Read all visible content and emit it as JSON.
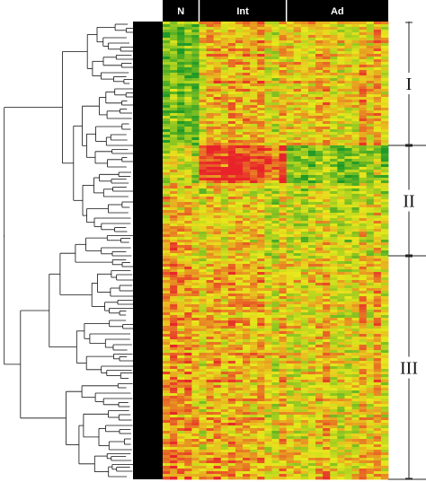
{
  "chart_data": {
    "type": "heatmap",
    "column_groups": [
      {
        "label": "N",
        "columns": 5
      },
      {
        "label": "Int",
        "columns": 12
      },
      {
        "label": "Ad",
        "columns": 14
      }
    ],
    "row_clusters": [
      {
        "label": "I",
        "row_fraction": 0.27
      },
      {
        "label": "II",
        "row_fraction": 0.24
      },
      {
        "label": "III",
        "row_fraction": 0.49
      }
    ],
    "n_rows": 170,
    "dendrogram": "rows, hierarchical, left side",
    "color_scale": {
      "low": "#1f9a28",
      "mid": "#e8e81c",
      "high": "#e8242a"
    },
    "grid": false,
    "legend": "none"
  }
}
